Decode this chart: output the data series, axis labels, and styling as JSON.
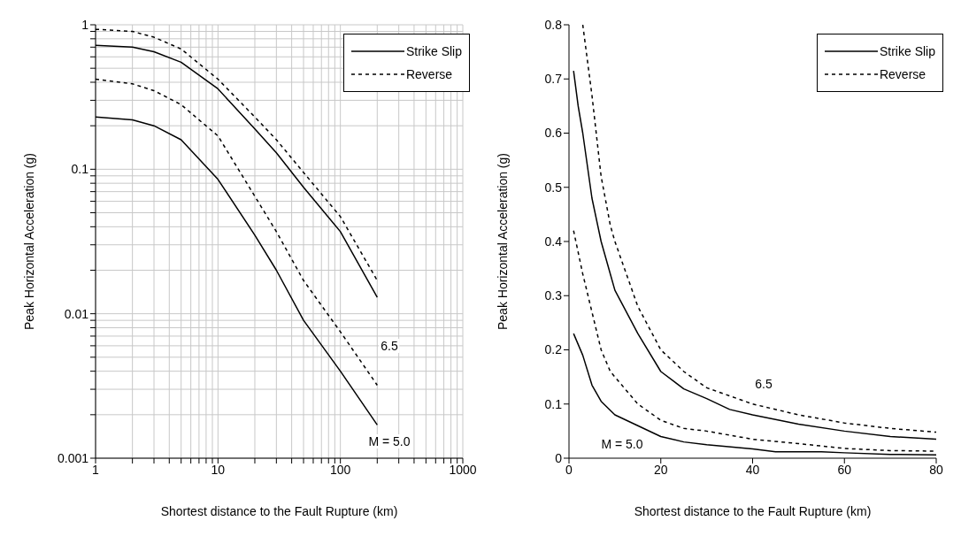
{
  "chart_data": [
    {
      "type": "line",
      "xlabel": "Shortest distance to the Fault Rupture (km)",
      "ylabel": "Peak Horizontal Acceleration (g)",
      "log": "xy",
      "grid": true,
      "legend": "top right",
      "xlim": [
        1,
        1000
      ],
      "ylim": [
        0.001,
        1
      ],
      "xticks": [
        1,
        {
          "value": 2,
          "label": null
        },
        {
          "value": 3,
          "label": null
        },
        {
          "value": 4,
          "label": null
        },
        {
          "value": 5,
          "label": null
        },
        {
          "value": 6,
          "label": null
        },
        {
          "value": 7,
          "label": null
        },
        {
          "value": 8,
          "label": null
        },
        {
          "value": 9,
          "label": null
        },
        10,
        {
          "value": 20,
          "label": null
        },
        {
          "value": 30,
          "label": null
        },
        {
          "value": 40,
          "label": null
        },
        {
          "value": 50,
          "label": null
        },
        {
          "value": 60,
          "label": null
        },
        {
          "value": 70,
          "label": null
        },
        {
          "value": 80,
          "label": null
        },
        {
          "value": 90,
          "label": null
        },
        100,
        {
          "value": 200,
          "label": null
        },
        {
          "value": 300,
          "label": null
        },
        {
          "value": 400,
          "label": null
        },
        {
          "value": 500,
          "label": null
        },
        {
          "value": 600,
          "label": null
        },
        {
          "value": 700,
          "label": null
        },
        {
          "value": 800,
          "label": null
        },
        {
          "value": 900,
          "label": null
        },
        1000
      ],
      "yticks": [
        0.001,
        {
          "value": 0.002,
          "label": null
        },
        {
          "value": 0.003,
          "label": null
        },
        {
          "value": 0.004,
          "label": null
        },
        {
          "value": 0.005,
          "label": null
        },
        {
          "value": 0.006,
          "label": null
        },
        {
          "value": 0.007,
          "label": null
        },
        {
          "value": 0.008,
          "label": null
        },
        {
          "value": 0.009,
          "label": null
        },
        0.01,
        {
          "value": 0.02,
          "label": null
        },
        {
          "value": 0.03,
          "label": null
        },
        {
          "value": 0.04,
          "label": null
        },
        {
          "value": 0.05,
          "label": null
        },
        {
          "value": 0.06,
          "label": null
        },
        {
          "value": 0.07,
          "label": null
        },
        {
          "value": 0.08,
          "label": null
        },
        {
          "value": 0.09,
          "label": null
        },
        0.1,
        {
          "value": 0.2,
          "label": null
        },
        {
          "value": 0.3,
          "label": null
        },
        {
          "value": 0.4,
          "label": null
        },
        {
          "value": 0.5,
          "label": null
        },
        {
          "value": 0.6,
          "label": null
        },
        {
          "value": 0.7,
          "label": null
        },
        {
          "value": 0.8,
          "label": null
        },
        {
          "value": 0.9,
          "label": null
        },
        1
      ],
      "series": [
        {
          "name": "Strike Slip",
          "color": "#000000",
          "line_style": "solid",
          "x": [
            1,
            2,
            3,
            5,
            10,
            20,
            30,
            50,
            100,
            200
          ],
          "values": [
            0.72,
            0.7,
            0.65,
            0.55,
            0.36,
            0.19,
            0.13,
            0.075,
            0.037,
            0.013
          ]
        },
        {
          "name": "Reverse",
          "color": "#000000",
          "line_style": "dashed",
          "x": [
            1,
            2,
            3,
            5,
            10,
            20,
            30,
            50,
            100,
            200
          ],
          "values": [
            0.93,
            0.9,
            0.82,
            0.68,
            0.42,
            0.23,
            0.16,
            0.095,
            0.047,
            0.017
          ]
        },
        {
          "color": "#000000",
          "line_style": "solid",
          "x": [
            1,
            2,
            3,
            5,
            10,
            20,
            30,
            50,
            100,
            200
          ],
          "values": [
            0.23,
            0.22,
            0.2,
            0.16,
            0.085,
            0.035,
            0.02,
            0.009,
            0.004,
            0.0017
          ]
        },
        {
          "color": "#000000",
          "line_style": "dashed",
          "x": [
            1,
            2,
            3,
            5,
            10,
            20,
            30,
            50,
            100,
            200
          ],
          "values": [
            0.42,
            0.39,
            0.35,
            0.28,
            0.17,
            0.065,
            0.037,
            0.017,
            0.0075,
            0.0032
          ]
        }
      ],
      "annotations": [
        "6.5",
        "M = 5.0"
      ]
    },
    {
      "type": "line",
      "xlabel": "Shortest distance to the Fault Rupture (km)",
      "ylabel": "Peak Horizontal Acceleration (g)",
      "grid": false,
      "legend": "top right",
      "xlim": [
        0,
        80
      ],
      "ylim": [
        0,
        0.8
      ],
      "xticks": [
        0,
        20,
        40,
        60,
        80
      ],
      "yticks": [
        0,
        0.1,
        0.2,
        0.3,
        0.4,
        0.5,
        0.6,
        0.7,
        0.8
      ],
      "series": [
        {
          "name": "Strike Slip",
          "color": "#000000",
          "line_style": "solid",
          "x": [
            1,
            2,
            3,
            5,
            7,
            9,
            10,
            15,
            20,
            25,
            30,
            35,
            40,
            50,
            60,
            70,
            80
          ],
          "values": [
            0.715,
            0.65,
            0.6,
            0.48,
            0.4,
            0.34,
            0.31,
            0.23,
            0.16,
            0.128,
            0.11,
            0.09,
            0.08,
            0.063,
            0.05,
            0.04,
            0.035
          ]
        },
        {
          "name": "Reverse",
          "color": "#000000",
          "line_style": "dashed",
          "x": [
            3,
            5,
            7,
            9,
            10,
            15,
            20,
            25,
            30,
            40,
            50,
            60,
            70,
            80
          ],
          "values": [
            0.8,
            0.67,
            0.52,
            0.43,
            0.4,
            0.28,
            0.2,
            0.16,
            0.13,
            0.1,
            0.08,
            0.065,
            0.055,
            0.048
          ]
        },
        {
          "color": "#000000",
          "line_style": "solid",
          "x": [
            1,
            3,
            5,
            7,
            10,
            15,
            20,
            25,
            30,
            40,
            45,
            55,
            60,
            70,
            80
          ],
          "values": [
            0.23,
            0.19,
            0.135,
            0.105,
            0.08,
            0.06,
            0.04,
            0.03,
            0.025,
            0.017,
            0.012,
            0.012,
            0.01,
            0.007,
            0.006
          ]
        },
        {
          "color": "#000000",
          "line_style": "dashed",
          "x": [
            1,
            3,
            5,
            7,
            9,
            10,
            15,
            20,
            25,
            30,
            40,
            50,
            60,
            70,
            80
          ],
          "values": [
            0.42,
            0.34,
            0.27,
            0.2,
            0.16,
            0.15,
            0.1,
            0.07,
            0.055,
            0.05,
            0.035,
            0.027,
            0.018,
            0.014,
            0.013
          ]
        }
      ],
      "annotations": [
        "6.5",
        "M = 5.0"
      ]
    }
  ]
}
